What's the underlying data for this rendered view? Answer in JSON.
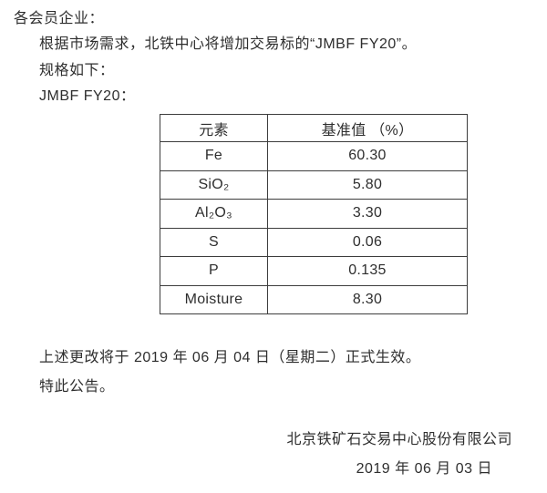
{
  "document": {
    "salutation": "各会员企业：",
    "intro": "根据市场需求，北铁中心将增加交易标的“JMBF FY20”。",
    "spec_label": "规格如下：",
    "product_label": "JMBF FY20：",
    "effective_note": "上述更改将于 2019 年 06 月 04 日（星期二）正式生效。",
    "closing": "特此公告。",
    "signature": {
      "company": "北京铁矿石交易中心股份有限公司",
      "date": "2019 年 06 月 03 日"
    }
  },
  "table": {
    "headers": [
      "元素",
      "基准值 （%）"
    ],
    "rows": [
      {
        "element": "Fe",
        "value": "60.30"
      },
      {
        "element": "SiO₂",
        "value": "5.80"
      },
      {
        "element": "Al₂O₃",
        "value": "3.30"
      },
      {
        "element": "S",
        "value": "0.06"
      },
      {
        "element": "P",
        "value": "0.135"
      },
      {
        "element": "Moisture",
        "value": "8.30"
      }
    ]
  },
  "colors": {
    "background": "#ffffff",
    "text": "#2e2e2e",
    "border": "#3d3d3d"
  }
}
